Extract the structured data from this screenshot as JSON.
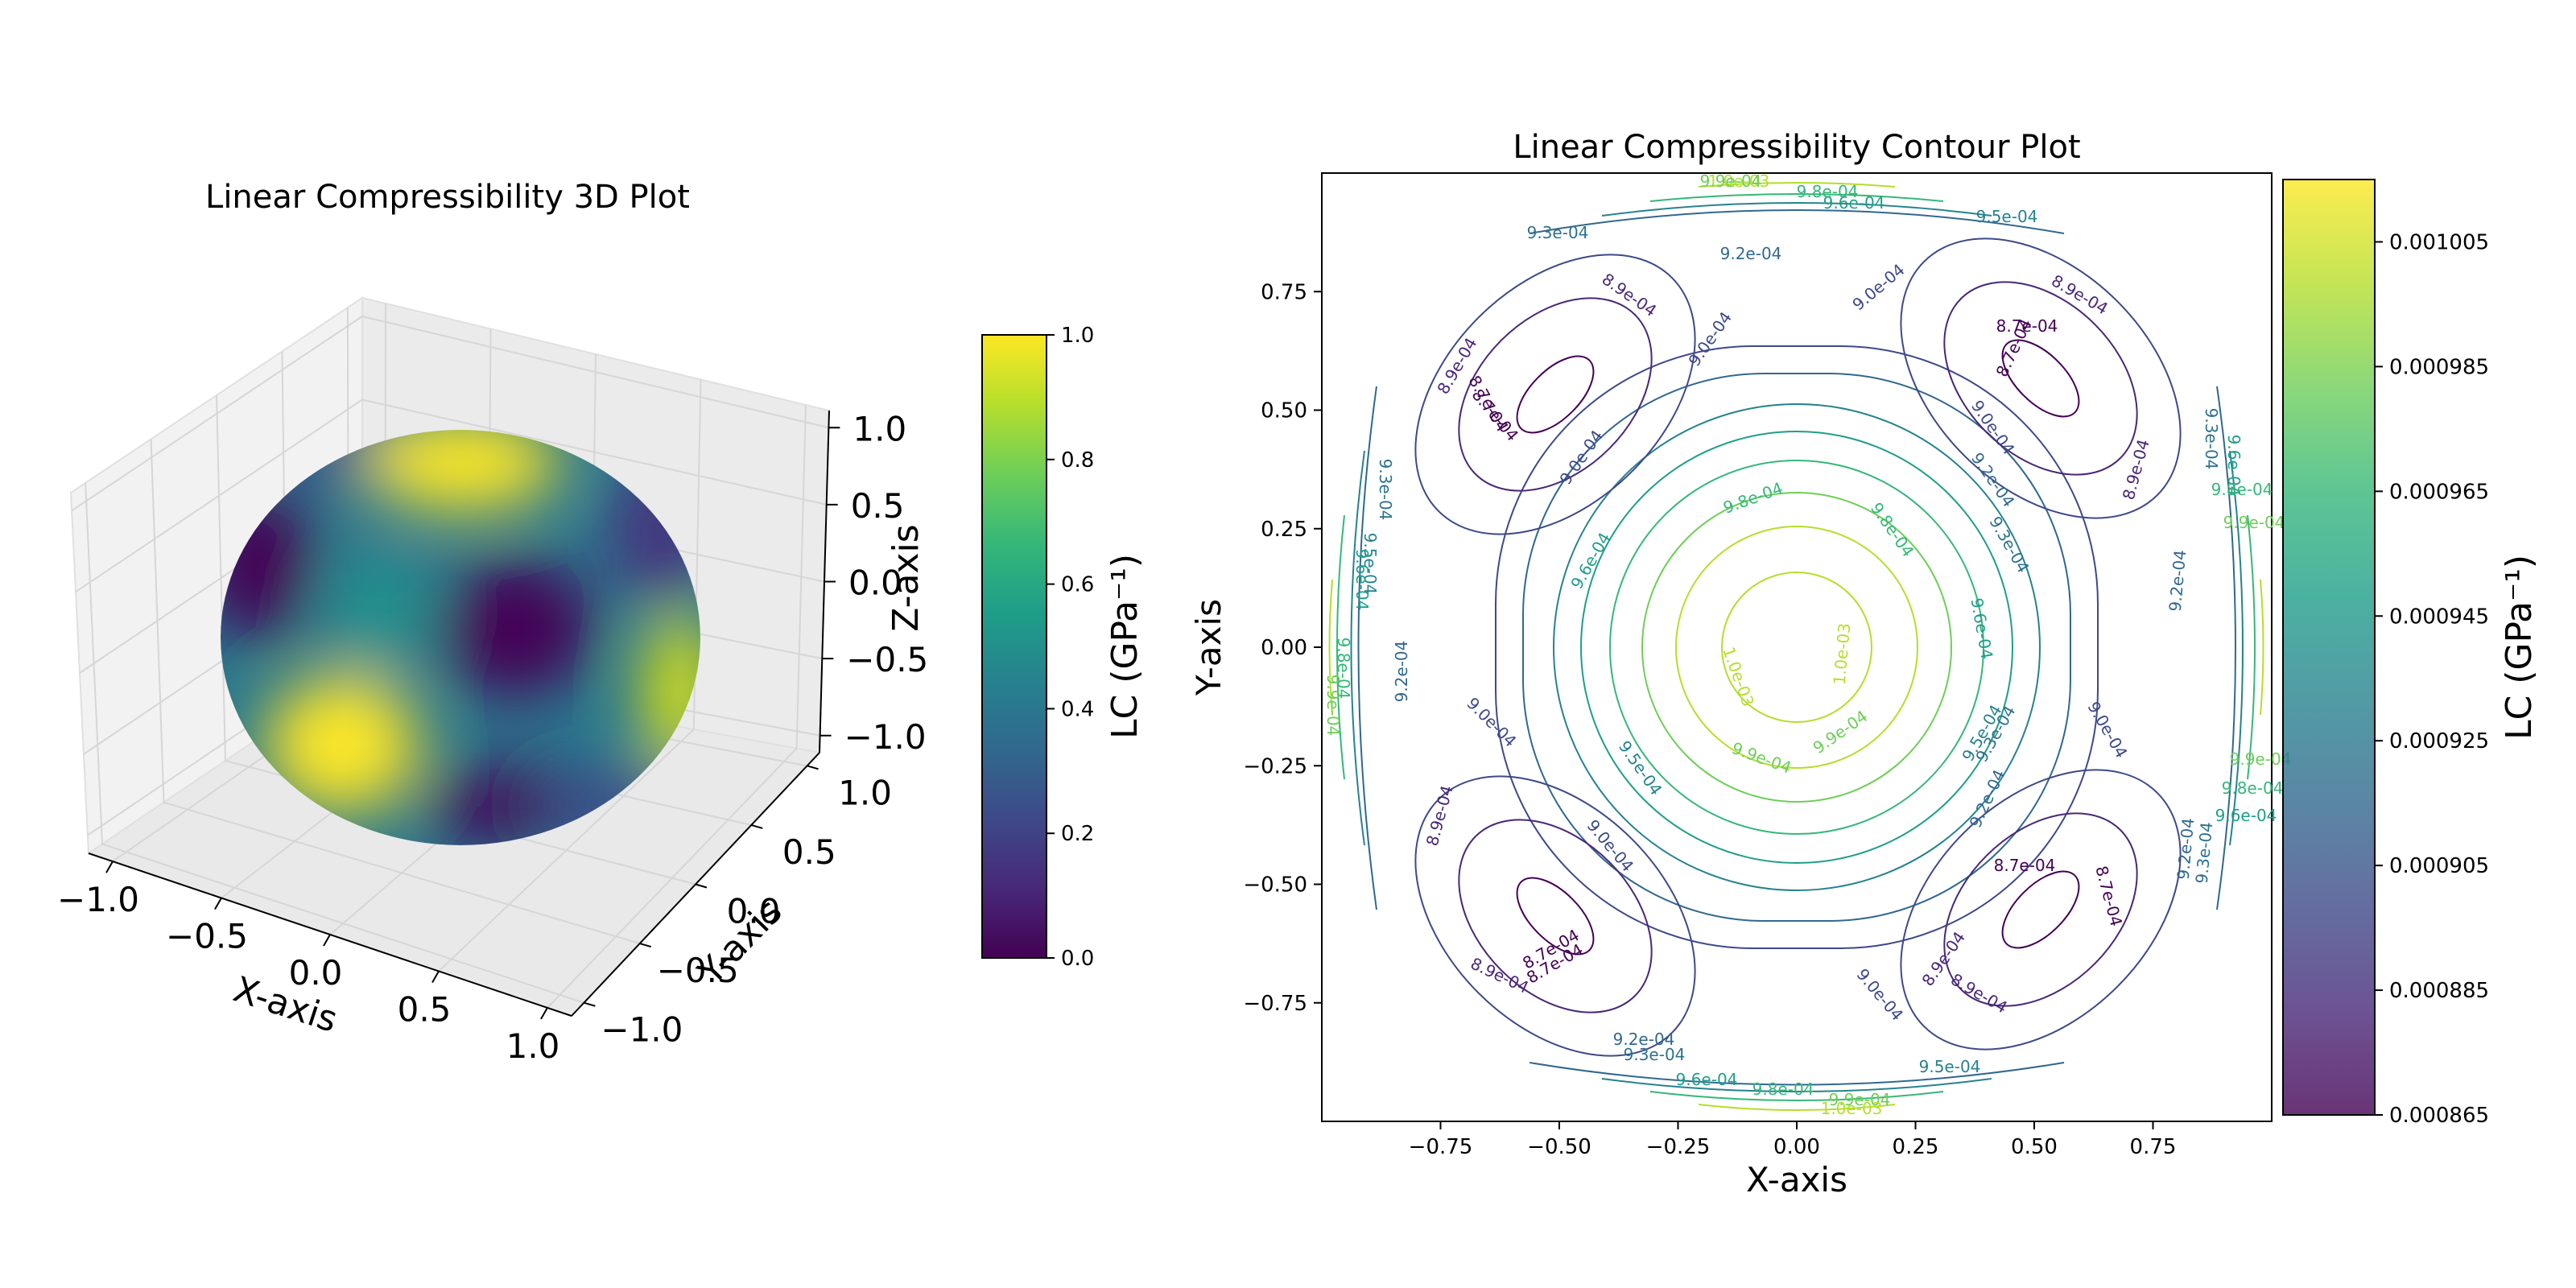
{
  "chart_data": [
    {
      "type": "surface3d",
      "title": "Linear Compressibility 3D Plot",
      "xlabel": "X-axis",
      "ylabel": "Y-axis",
      "zlabel": "Z-axis",
      "xlim": [
        -1.0,
        1.0
      ],
      "ylim": [
        -1.0,
        1.0
      ],
      "zlim": [
        -1.0,
        1.0
      ],
      "x_ticks": [
        "−1.0",
        "−0.5",
        "0.0",
        "0.5",
        "1.0"
      ],
      "y_ticks": [
        "−1.0",
        "−0.5",
        "0.0",
        "0.5",
        "1.0"
      ],
      "z_ticks": [
        "−1.0",
        "−0.5",
        "0.0",
        "0.5",
        "1.0"
      ],
      "colormap": "viridis",
      "surface": "unit sphere colored by normalized linear compressibility",
      "grid": true,
      "colorbar": {
        "label": "LC (GPa⁻¹)",
        "range": [
          0.0,
          1.0
        ],
        "ticks": [
          "0.0",
          "0.2",
          "0.4",
          "0.6",
          "0.8",
          "1.0"
        ]
      }
    },
    {
      "type": "contour",
      "title": "Linear Compressibility Contour Plot",
      "xlabel": "X-axis",
      "ylabel": "Y-axis",
      "xlim": [
        -1.0,
        1.0
      ],
      "ylim": [
        -1.0,
        1.0
      ],
      "x_ticks": [
        "−0.75",
        "−0.50",
        "−0.25",
        "0.00",
        "0.25",
        "0.50",
        "0.75"
      ],
      "y_ticks": [
        "−0.75",
        "−0.50",
        "−0.25",
        "0.00",
        "0.25",
        "0.50",
        "0.75"
      ],
      "colormap": "viridis",
      "levels": [
        0.00087,
        0.00089,
        0.0009,
        0.00092,
        0.00093,
        0.00095,
        0.00096,
        0.00098,
        0.00099,
        0.001
      ],
      "contour_labels": [
        "8.7e-04",
        "8.9e-04",
        "9.0e-04",
        "9.2e-04",
        "9.3e-04",
        "9.5e-04",
        "9.6e-04",
        "9.8e-04",
        "9.9e-04",
        "1.0e-03"
      ],
      "colorbar": {
        "label": "LC (GPa⁻¹)",
        "range": [
          0.000865,
          0.001015
        ],
        "ticks": [
          "0.001005",
          "0.000985",
          "0.000965",
          "0.000945",
          "0.000925",
          "0.000905",
          "0.000885",
          "0.000865"
        ]
      }
    }
  ],
  "colors": {
    "viridis": [
      "#440154",
      "#482878",
      "#3e4989",
      "#31688e",
      "#26828e",
      "#1f9e89",
      "#35b779",
      "#6ece58",
      "#b5de2b",
      "#fde725"
    ],
    "pane": "#f2f2f2",
    "grid": "#d9d9d9"
  }
}
